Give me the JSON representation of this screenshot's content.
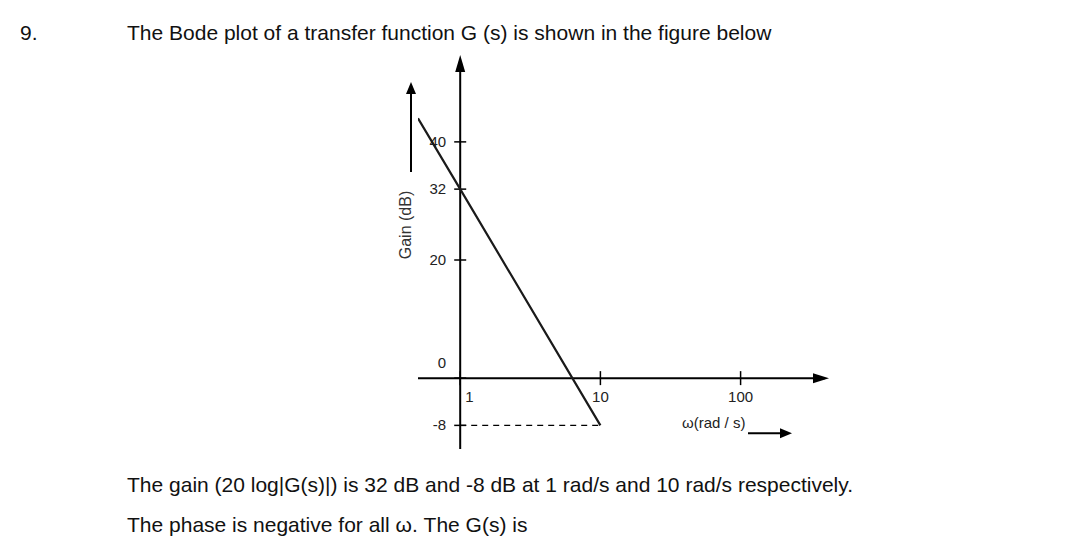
{
  "question": {
    "number": "9.",
    "intro": "The Bode plot of a transfer function G (s) is shown in the figure below",
    "statement": "The gain (20 log|G(s)|) is 32 dB and -8 dB at 1 rad/s and 10 rad/s respectively.",
    "prompt": "The phase is negative for all ω. The G(s) is"
  },
  "chart_data": {
    "type": "line",
    "log": "x",
    "x_label": "ω(rad / s)",
    "y_label": "Gain (dB)",
    "x": [
      0.5,
      1,
      10
    ],
    "values": [
      44,
      32,
      -8
    ],
    "color": "#1a1a1a",
    "xlim": [
      0.5,
      400
    ],
    "xticks": [
      1,
      10,
      100
    ],
    "ylim": [
      -12,
      52
    ],
    "yticks": [
      40,
      32,
      20,
      0,
      -8
    ],
    "grid": false
  }
}
